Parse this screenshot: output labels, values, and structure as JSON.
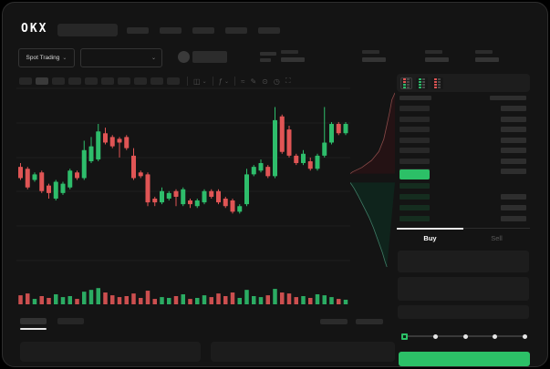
{
  "header": {
    "logo_text": "OKX",
    "nav_item_count": 5
  },
  "market_bar": {
    "market_type": {
      "label": "Spot Trading",
      "chevron": "⌄"
    },
    "pair_selector": {
      "chevron": "⌄"
    },
    "ticker_stat_count": 4
  },
  "chart_toolbar": {
    "timeframe_count": 10,
    "active_timeframe_index": 1,
    "tools": [
      {
        "name": "candle-style-icon",
        "glyph": "◫",
        "chevron": "⌄"
      },
      {
        "name": "indicators-icon",
        "glyph": "ƒ",
        "chevron": "⌄"
      },
      {
        "name": "line-type-icon",
        "glyph": "≈"
      },
      {
        "name": "draw-icon",
        "glyph": "✎"
      },
      {
        "name": "snapshot-icon",
        "glyph": "⊙"
      },
      {
        "name": "history-icon",
        "glyph": "◷"
      },
      {
        "name": "fullscreen-icon",
        "glyph": "⛶"
      }
    ]
  },
  "chart_data": {
    "type": "candlestick",
    "subtype": "price+volume",
    "title": "",
    "units": "relative price scale 0-100 (no axis labels visible in screenshot)",
    "grid": true,
    "up_color": "#2ebd6b",
    "down_color": "#e05555",
    "candles": [
      [
        57,
        59,
        50,
        51
      ],
      [
        56,
        57,
        45,
        46
      ],
      [
        50,
        54,
        49,
        53
      ],
      [
        54,
        55,
        43,
        44
      ],
      [
        47,
        48,
        40,
        43
      ],
      [
        40,
        50,
        39,
        49
      ],
      [
        43,
        49,
        42,
        48
      ],
      [
        46,
        56,
        45,
        55
      ],
      [
        54,
        55,
        50,
        51
      ],
      [
        51,
        71,
        50,
        66
      ],
      [
        60,
        73,
        59,
        68
      ],
      [
        61,
        80,
        60,
        76
      ],
      [
        75,
        78,
        69,
        70
      ],
      [
        73,
        74,
        67,
        68
      ],
      [
        72,
        73,
        62,
        70
      ],
      [
        73,
        74,
        66,
        67
      ],
      [
        63,
        67,
        50,
        51
      ],
      [
        54,
        55,
        51,
        52
      ],
      [
        53,
        54,
        36,
        38
      ],
      [
        40,
        41,
        36,
        38
      ],
      [
        38,
        46,
        37,
        44
      ],
      [
        40,
        44,
        39,
        43
      ],
      [
        44,
        45,
        36,
        41
      ],
      [
        37,
        46,
        36,
        45
      ],
      [
        39,
        40,
        35,
        37
      ],
      [
        36,
        40,
        35,
        39
      ],
      [
        38,
        45,
        37,
        44
      ],
      [
        44,
        45,
        40,
        41
      ],
      [
        44,
        45,
        37,
        38
      ],
      [
        40,
        41,
        35,
        36
      ],
      [
        39,
        40,
        32,
        33
      ],
      [
        33,
        37,
        32,
        36
      ],
      [
        37,
        56,
        36,
        53
      ],
      [
        53,
        58,
        52,
        57
      ],
      [
        55,
        61,
        54,
        59
      ],
      [
        57,
        58,
        51,
        52
      ],
      [
        52,
        89,
        51,
        82
      ],
      [
        84,
        85,
        64,
        65
      ],
      [
        77,
        79,
        62,
        63
      ],
      [
        63,
        64,
        58,
        59
      ],
      [
        59,
        66,
        58,
        64
      ],
      [
        60,
        62,
        55,
        56
      ],
      [
        56,
        64,
        55,
        63
      ],
      [
        63,
        89,
        62,
        70
      ],
      [
        70,
        81,
        69,
        80
      ],
      [
        80,
        81,
        74,
        75
      ],
      [
        75,
        81,
        74,
        80
      ]
    ],
    "volumes": [
      55,
      66,
      33,
      50,
      39,
      61,
      44,
      50,
      33,
      77,
      88,
      99,
      72,
      55,
      44,
      50,
      66,
      39,
      83,
      33,
      44,
      39,
      50,
      61,
      33,
      39,
      55,
      44,
      66,
      50,
      72,
      39,
      88,
      50,
      44,
      55,
      94,
      72,
      66,
      44,
      50,
      39,
      61,
      55,
      44,
      33,
      28
    ]
  },
  "depth_chart": {
    "asks_line_color": "#8a4a48",
    "asks_fill": "#241214",
    "bids_line_color": "#3f7d66",
    "bids_fill": "#0f241c",
    "asks_points": [
      [
        1,
        0.02
      ],
      [
        0.93,
        0.06
      ],
      [
        0.88,
        0.13
      ],
      [
        0.82,
        0.2
      ],
      [
        0.75,
        0.28
      ],
      [
        0.64,
        0.35
      ],
      [
        0.48,
        0.4
      ],
      [
        0.26,
        0.44
      ],
      [
        0.05,
        0.465
      ],
      [
        0,
        0.475
      ]
    ],
    "bids_points": [
      [
        0,
        0.525
      ],
      [
        0.08,
        0.555
      ],
      [
        0.18,
        0.6
      ],
      [
        0.3,
        0.66
      ],
      [
        0.42,
        0.72
      ],
      [
        0.52,
        0.78
      ],
      [
        0.62,
        0.85
      ],
      [
        0.72,
        0.92
      ],
      [
        0.78,
        0.97
      ],
      [
        0.82,
        1
      ]
    ]
  },
  "order_book": {
    "view_modes": [
      {
        "name": "book-all-icon",
        "selected": true,
        "row_colors": [
          "#e05555",
          "#e05555",
          "#2ebd6b",
          "#2ebd6b"
        ]
      },
      {
        "name": "book-bids-icon",
        "selected": false,
        "row_colors": [
          "#2ebd6b",
          "#2ebd6b",
          "#2ebd6b",
          "#2ebd6b"
        ]
      },
      {
        "name": "book-asks-icon",
        "selected": false,
        "row_colors": [
          "#e05555",
          "#e05555",
          "#e05555",
          "#e05555"
        ]
      }
    ],
    "ask_row_count": 7,
    "bid_row_count": 4,
    "bid_rows_with_amount": [
      false,
      true,
      true,
      true
    ],
    "mid_price_color": "#2cc067"
  },
  "trade_panel": {
    "tabs": [
      {
        "label": "Buy",
        "active": true
      },
      {
        "label": "Sell",
        "active": false
      }
    ],
    "input_row_count": 3,
    "slider": {
      "stop_count": 5,
      "handle_index": 0,
      "handle_color": "#2cc067"
    },
    "submit_color": "#2cc067"
  },
  "bottom_bar": {
    "tab_count": 2,
    "active_tab_index": 0,
    "right_link_count": 2,
    "panel_count": 2
  }
}
